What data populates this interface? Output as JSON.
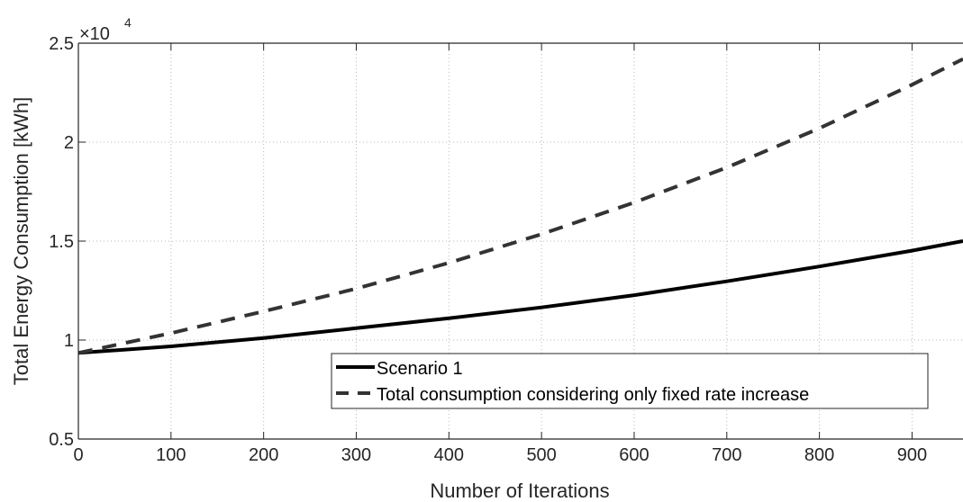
{
  "chart_data": {
    "type": "line",
    "xlabel": "Number of Iterations",
    "ylabel": "Total Energy Consumption [kWh]",
    "exponent_base": "×10",
    "exponent_power": "4",
    "xlim": [
      0,
      955
    ],
    "ylim": [
      0.5,
      2.5
    ],
    "xticks": [
      0,
      100,
      200,
      300,
      400,
      500,
      600,
      700,
      800,
      900
    ],
    "xtick_labels": [
      "0",
      "100",
      "200",
      "300",
      "400",
      "500",
      "600",
      "700",
      "800",
      "900"
    ],
    "yticks": [
      0.5,
      1,
      1.5,
      2,
      2.5
    ],
    "ytick_labels": [
      "0.5",
      "1",
      "1.5",
      "2",
      "2.5"
    ],
    "grid": true,
    "legend_position": "lower-right inside",
    "series": [
      {
        "name": "Scenario 1",
        "style": "solid",
        "color": "#000000",
        "x": [
          0,
          100,
          200,
          300,
          400,
          500,
          600,
          700,
          800,
          900,
          955
        ],
        "y": [
          0.935,
          0.968,
          1.01,
          1.06,
          1.11,
          1.165,
          1.227,
          1.297,
          1.372,
          1.452,
          1.5
        ]
      },
      {
        "name": "Total consumption considering only fixed rate increase",
        "style": "dashed",
        "color": "#333333",
        "x": [
          0,
          100,
          200,
          300,
          400,
          500,
          600,
          700,
          800,
          900,
          955
        ],
        "y": [
          0.935,
          1.035,
          1.145,
          1.26,
          1.39,
          1.535,
          1.695,
          1.872,
          2.07,
          2.29,
          2.42
        ]
      }
    ]
  }
}
